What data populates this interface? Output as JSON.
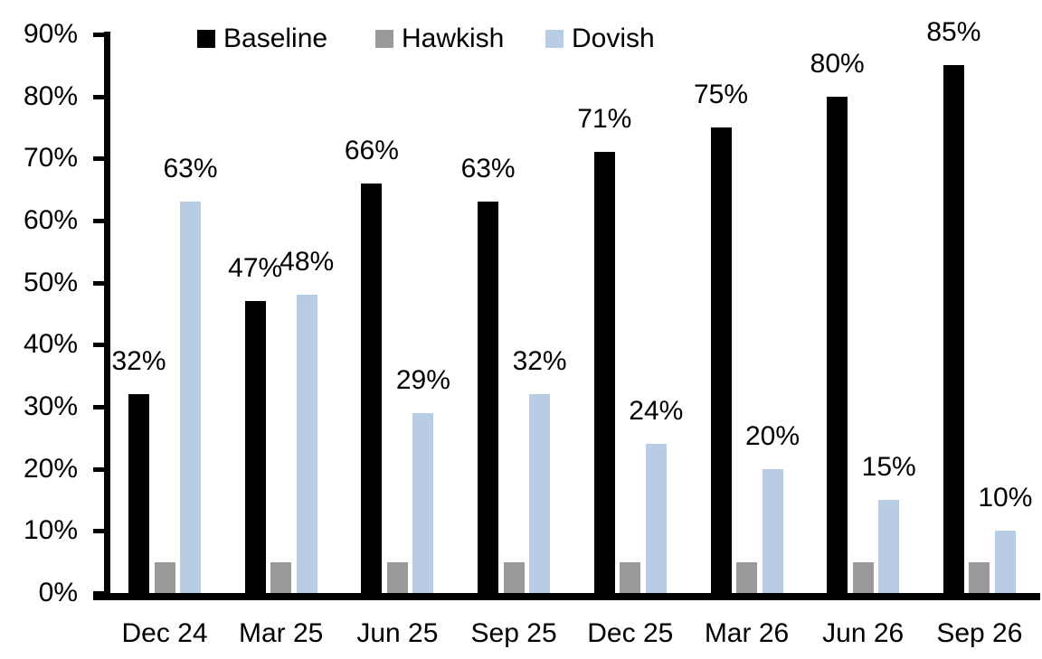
{
  "chart_data": {
    "type": "bar",
    "title": "",
    "xlabel": "",
    "ylabel": "",
    "categories": [
      "Dec 24",
      "Mar 25",
      "Jun 25",
      "Sep 25",
      "Dec 25",
      "Mar 26",
      "Jun 26",
      "Sep 26"
    ],
    "series": [
      {
        "name": "Baseline",
        "color": "#000000",
        "values": [
          32,
          47,
          66,
          63,
          71,
          75,
          80,
          85
        ],
        "labels": [
          "32%",
          "47%",
          "66%",
          "63%",
          "71%",
          "75%",
          "80%",
          "85%"
        ]
      },
      {
        "name": "Hawkish",
        "color": "#999999",
        "values": [
          5,
          5,
          5,
          5,
          5,
          5,
          5,
          5
        ],
        "labels": [
          null,
          null,
          null,
          null,
          null,
          null,
          null,
          null
        ]
      },
      {
        "name": "Dovish",
        "color": "#B8CCE4",
        "values": [
          63,
          48,
          29,
          32,
          24,
          20,
          15,
          10
        ],
        "labels": [
          "63%",
          "48%",
          "29%",
          "32%",
          "24%",
          "20%",
          "15%",
          "10%"
        ]
      }
    ],
    "yticks": [
      "0%",
      "10%",
      "20%",
      "30%",
      "40%",
      "50%",
      "60%",
      "70%",
      "80%",
      "90%"
    ],
    "ylim": [
      0,
      90
    ],
    "grid": false,
    "legend_position": "top",
    "axis_color": "#000000",
    "label_color": "#000000"
  }
}
